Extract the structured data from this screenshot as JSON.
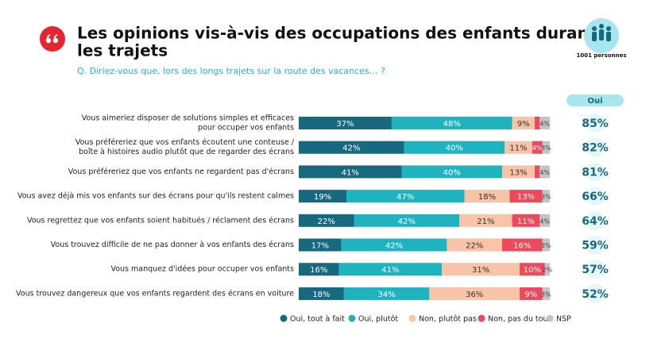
{
  "chart_data": {
    "type": "stacked-bar-horizontal",
    "title": [
      "Les opinions vis-à-vis des occupations des enfants durant",
      "les trajets"
    ],
    "subtitle": "Q. Diriez-vous que, lors des longs trajets sur la route des vacances… ?",
    "sample": "1001 personnes",
    "categories": [
      [
        "Vous aimeriez disposer de solutions simples et efficaces",
        "pour occuper vos enfants"
      ],
      [
        "Vous préféreriez que vos enfants écoutent une conteuse /",
        "boîte à histoires audio plutôt que de regarder des écrans"
      ],
      [
        "Vous préféreriez que vos enfants ne regardent pas d'écrans"
      ],
      [
        "Vous avez déjà mis vos enfants sur des écrans pour qu'ils restent calmes"
      ],
      [
        "Vous regrettez que vos enfants soient habitués / réclament des écrans"
      ],
      [
        "Vous trouvez difficile de ne pas donner à vos enfants des écrans"
      ],
      [
        "Vous manquez d'idées pour occuper vos enfants"
      ],
      [
        "Vous trouvez dangereux que vos enfants regardent des écrans en voiture"
      ]
    ],
    "xlim": [
      0,
      100
    ],
    "series": [
      {
        "name": "Oui, tout à fait",
        "color": "#17697f",
        "text_color": "#ffffff",
        "values": [
          37,
          42,
          41,
          19,
          22,
          17,
          16,
          18
        ],
        "value_labels": [
          "37%",
          "42%",
          "41%",
          "19%",
          "22%",
          "17%",
          "16%",
          "18%"
        ]
      },
      {
        "name": "Oui, plutôt",
        "color": "#1fb3bf",
        "text_color": "#ffffff",
        "values": [
          48,
          40,
          40,
          47,
          42,
          42,
          41,
          34
        ],
        "value_labels": [
          "48%",
          "40%",
          "40%",
          "47%",
          "42%",
          "42%",
          "41%",
          "34%"
        ]
      },
      {
        "name": "Non, plutôt pas",
        "color": "#f8c3a6",
        "text_color": "#333333",
        "values": [
          9,
          11,
          13,
          18,
          21,
          22,
          31,
          36
        ],
        "value_labels": [
          "9%",
          "11%",
          "13%",
          "18%",
          "21%",
          "22%",
          "31%",
          "36%"
        ]
      },
      {
        "name": "Non, pas du tout",
        "color": "#ea4a5c",
        "text_color": "#ffffff",
        "values": [
          2,
          4,
          2,
          13,
          11,
          16,
          10,
          9
        ],
        "value_labels": [
          null,
          "4%",
          null,
          "13%",
          "11%",
          "16%",
          "10%",
          "9%"
        ]
      },
      {
        "name": "NSP",
        "color": "#c4c4c4",
        "text_color": "#444444",
        "values": [
          4,
          3,
          4,
          3,
          4,
          3,
          2,
          3
        ],
        "value_labels": [
          "4%",
          "3%",
          "4%",
          "3%",
          "4%",
          "3%",
          "2%",
          "3%"
        ]
      }
    ],
    "oui": {
      "title": "Oui",
      "labels": [
        "85%",
        "82%",
        "81%",
        "66%",
        "64%",
        "59%",
        "57%",
        "52%"
      ]
    }
  }
}
